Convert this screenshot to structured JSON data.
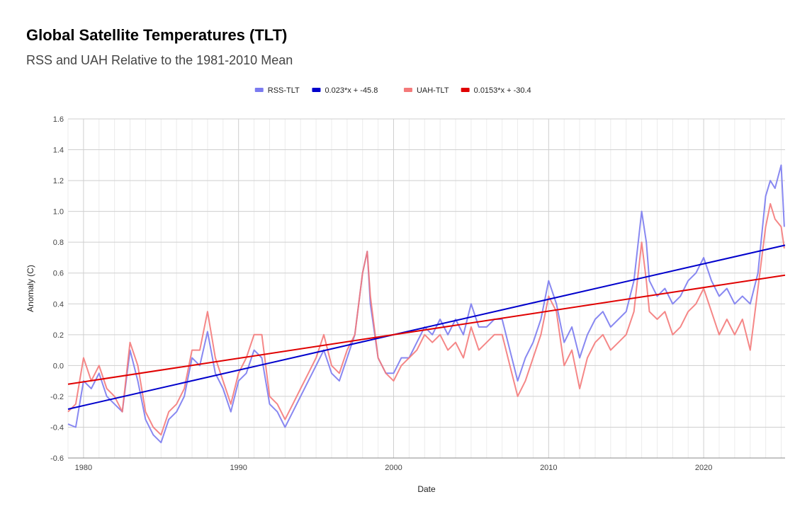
{
  "chart_data": {
    "type": "line",
    "title": "Global Satellite Temperatures (TLT)",
    "subtitle": "RSS and UAH Relative to the 1981-2010 Mean",
    "xlabel": "Date",
    "ylabel": "Anomaly (C)",
    "xlim": [
      1979.0,
      2025.25
    ],
    "ylim": [
      -0.6,
      1.6
    ],
    "xticks": [
      1980,
      1990,
      2000,
      2010,
      2020
    ],
    "xtick_labels": [
      "1980",
      "1990",
      "2000",
      "2010",
      "2020"
    ],
    "yticks": [
      -0.6,
      -0.4,
      -0.2,
      0.0,
      0.2,
      0.4,
      0.6,
      0.8,
      1.0,
      1.2,
      1.4,
      1.6
    ],
    "ytick_labels": [
      "-0.6",
      "-0.4",
      "-0.2",
      "0.0",
      "0.2",
      "0.4",
      "0.6",
      "0.8",
      "1.0",
      "1.2",
      "1.4",
      "1.6"
    ],
    "grid": true,
    "legend_position": "top-center",
    "legend": [
      {
        "label": "RSS-TLT",
        "color": "#7b7bf0",
        "kind": "series"
      },
      {
        "label": "0.023*x + -45.8",
        "color": "#0000cc",
        "kind": "trend"
      },
      {
        "label": "UAH-TLT",
        "color": "#f47a7a",
        "kind": "series"
      },
      {
        "label": "0.0153*x + -30.4",
        "color": "#e00000",
        "kind": "trend"
      }
    ],
    "series": [
      {
        "name": "RSS-TLT",
        "color": "#7b7bf0",
        "x": [
          1979.0,
          1979.5,
          1980.0,
          1980.5,
          1981.0,
          1981.5,
          1982.0,
          1982.5,
          1983.0,
          1983.5,
          1984.0,
          1984.5,
          1985.0,
          1985.5,
          1986.0,
          1986.5,
          1987.0,
          1987.5,
          1988.0,
          1988.5,
          1989.0,
          1989.5,
          1990.0,
          1990.5,
          1991.0,
          1991.5,
          1992.0,
          1992.5,
          1993.0,
          1993.5,
          1994.0,
          1994.5,
          1995.0,
          1995.5,
          1996.0,
          1996.5,
          1997.0,
          1997.5,
          1998.0,
          1998.3,
          1998.5,
          1999.0,
          1999.5,
          2000.0,
          2000.5,
          2001.0,
          2001.5,
          2002.0,
          2002.5,
          2003.0,
          2003.5,
          2004.0,
          2004.5,
          2005.0,
          2005.5,
          2006.0,
          2006.5,
          2007.0,
          2007.5,
          2008.0,
          2008.5,
          2009.0,
          2009.5,
          2010.0,
          2010.5,
          2011.0,
          2011.5,
          2012.0,
          2012.5,
          2013.0,
          2013.5,
          2014.0,
          2014.5,
          2015.0,
          2015.5,
          2016.0,
          2016.3,
          2016.5,
          2017.0,
          2017.5,
          2018.0,
          2018.5,
          2019.0,
          2019.5,
          2020.0,
          2020.5,
          2021.0,
          2021.5,
          2022.0,
          2022.5,
          2023.0,
          2023.5,
          2024.0,
          2024.3,
          2024.6,
          2025.0,
          2025.2
        ],
        "y": [
          -0.38,
          -0.4,
          -0.1,
          -0.15,
          -0.05,
          -0.2,
          -0.25,
          -0.3,
          0.1,
          -0.1,
          -0.35,
          -0.45,
          -0.5,
          -0.35,
          -0.3,
          -0.2,
          0.05,
          0.0,
          0.22,
          -0.05,
          -0.15,
          -0.3,
          -0.1,
          -0.05,
          0.1,
          0.05,
          -0.25,
          -0.3,
          -0.4,
          -0.3,
          -0.2,
          -0.1,
          0.0,
          0.1,
          -0.05,
          -0.1,
          0.05,
          0.2,
          0.6,
          0.74,
          0.4,
          0.05,
          -0.05,
          -0.05,
          0.05,
          0.05,
          0.15,
          0.25,
          0.2,
          0.3,
          0.2,
          0.3,
          0.2,
          0.4,
          0.25,
          0.25,
          0.3,
          0.3,
          0.1,
          -0.1,
          0.05,
          0.15,
          0.3,
          0.55,
          0.4,
          0.15,
          0.25,
          0.05,
          0.2,
          0.3,
          0.35,
          0.25,
          0.3,
          0.35,
          0.55,
          1.0,
          0.8,
          0.55,
          0.45,
          0.5,
          0.4,
          0.45,
          0.55,
          0.6,
          0.7,
          0.55,
          0.45,
          0.5,
          0.4,
          0.45,
          0.4,
          0.6,
          1.1,
          1.2,
          1.15,
          1.3,
          0.9
        ]
      },
      {
        "name": "UAH-TLT",
        "color": "#f47a7a",
        "x": [
          1979.0,
          1979.5,
          1980.0,
          1980.5,
          1981.0,
          1981.5,
          1982.0,
          1982.5,
          1983.0,
          1983.5,
          1984.0,
          1984.5,
          1985.0,
          1985.5,
          1986.0,
          1986.5,
          1987.0,
          1987.5,
          1988.0,
          1988.5,
          1989.0,
          1989.5,
          1990.0,
          1990.5,
          1991.0,
          1991.5,
          1992.0,
          1992.5,
          1993.0,
          1993.5,
          1994.0,
          1994.5,
          1995.0,
          1995.5,
          1996.0,
          1996.5,
          1997.0,
          1997.5,
          1998.0,
          1998.3,
          1998.5,
          1999.0,
          1999.5,
          2000.0,
          2000.5,
          2001.0,
          2001.5,
          2002.0,
          2002.5,
          2003.0,
          2003.5,
          2004.0,
          2004.5,
          2005.0,
          2005.5,
          2006.0,
          2006.5,
          2007.0,
          2007.5,
          2008.0,
          2008.5,
          2009.0,
          2009.5,
          2010.0,
          2010.5,
          2011.0,
          2011.5,
          2012.0,
          2012.5,
          2013.0,
          2013.5,
          2014.0,
          2014.5,
          2015.0,
          2015.5,
          2016.0,
          2016.3,
          2016.5,
          2017.0,
          2017.5,
          2018.0,
          2018.5,
          2019.0,
          2019.5,
          2020.0,
          2020.5,
          2021.0,
          2021.5,
          2022.0,
          2022.5,
          2023.0,
          2023.5,
          2024.0,
          2024.3,
          2024.6,
          2025.0,
          2025.2
        ],
        "y": [
          -0.3,
          -0.25,
          0.05,
          -0.1,
          0.0,
          -0.15,
          -0.2,
          -0.3,
          0.15,
          0.0,
          -0.3,
          -0.4,
          -0.45,
          -0.3,
          -0.25,
          -0.15,
          0.1,
          0.1,
          0.35,
          0.05,
          -0.1,
          -0.25,
          -0.05,
          0.05,
          0.2,
          0.2,
          -0.2,
          -0.25,
          -0.35,
          -0.25,
          -0.15,
          -0.05,
          0.05,
          0.2,
          0.0,
          -0.05,
          0.1,
          0.2,
          0.6,
          0.74,
          0.45,
          0.05,
          -0.05,
          -0.1,
          0.0,
          0.05,
          0.1,
          0.2,
          0.15,
          0.2,
          0.1,
          0.15,
          0.05,
          0.25,
          0.1,
          0.15,
          0.2,
          0.2,
          0.0,
          -0.2,
          -0.1,
          0.05,
          0.2,
          0.45,
          0.35,
          0.0,
          0.1,
          -0.15,
          0.05,
          0.15,
          0.2,
          0.1,
          0.15,
          0.2,
          0.35,
          0.8,
          0.55,
          0.35,
          0.3,
          0.35,
          0.2,
          0.25,
          0.35,
          0.4,
          0.5,
          0.35,
          0.2,
          0.3,
          0.2,
          0.3,
          0.1,
          0.5,
          0.9,
          1.05,
          0.95,
          0.9,
          0.76
        ]
      }
    ],
    "trendlines": [
      {
        "name": "0.023*x + -45.8",
        "color": "#0000cc",
        "slope": 0.023,
        "intercept": -45.8
      },
      {
        "name": "0.0153*x + -30.4",
        "color": "#e00000",
        "slope": 0.0153,
        "intercept": -30.4
      }
    ]
  }
}
